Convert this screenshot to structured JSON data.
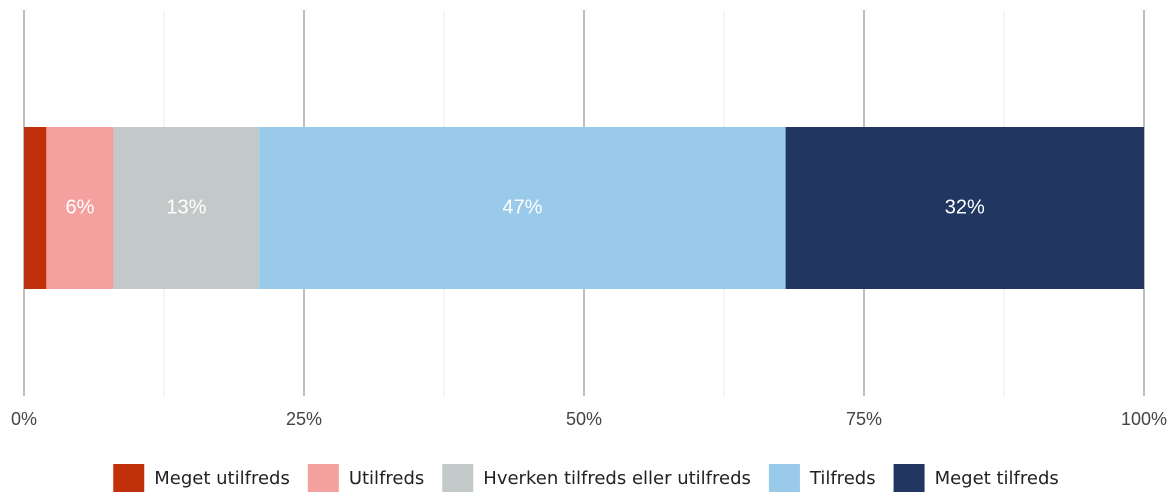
{
  "chart_data": {
    "type": "stacked_barh",
    "categories": [
      null
    ],
    "series": [
      {
        "name": "Meget utilfreds",
        "color": "#c0300a",
        "values": [
          2
        ],
        "value_labels": [
          null
        ]
      },
      {
        "name": "Utilfreds",
        "color": "#f4a09e",
        "values": [
          6
        ],
        "value_labels": [
          "6%"
        ]
      },
      {
        "name": "Hverken tilfreds eller utilfreds",
        "color": "#c3c9c8",
        "values": [
          13
        ],
        "value_labels": [
          "13%"
        ]
      },
      {
        "name": "Tilfreds",
        "color": "#9acae9",
        "values": [
          47
        ],
        "value_labels": [
          "47%"
        ]
      },
      {
        "name": "Meget tilfreds",
        "color": "#213762",
        "values": [
          32
        ],
        "value_labels": [
          "32%"
        ]
      }
    ],
    "xlim": [
      0,
      100
    ],
    "xticks": [
      {
        "value": 0,
        "label": "0%"
      },
      {
        "value": 25,
        "label": "25%"
      },
      {
        "value": 50,
        "label": "50%"
      },
      {
        "value": 75,
        "label": "75%"
      },
      {
        "value": 100,
        "label": "100%"
      }
    ],
    "xminorticks": [
      12.5,
      37.5,
      62.5,
      87.5
    ],
    "grid": true,
    "legend": "bottom"
  }
}
